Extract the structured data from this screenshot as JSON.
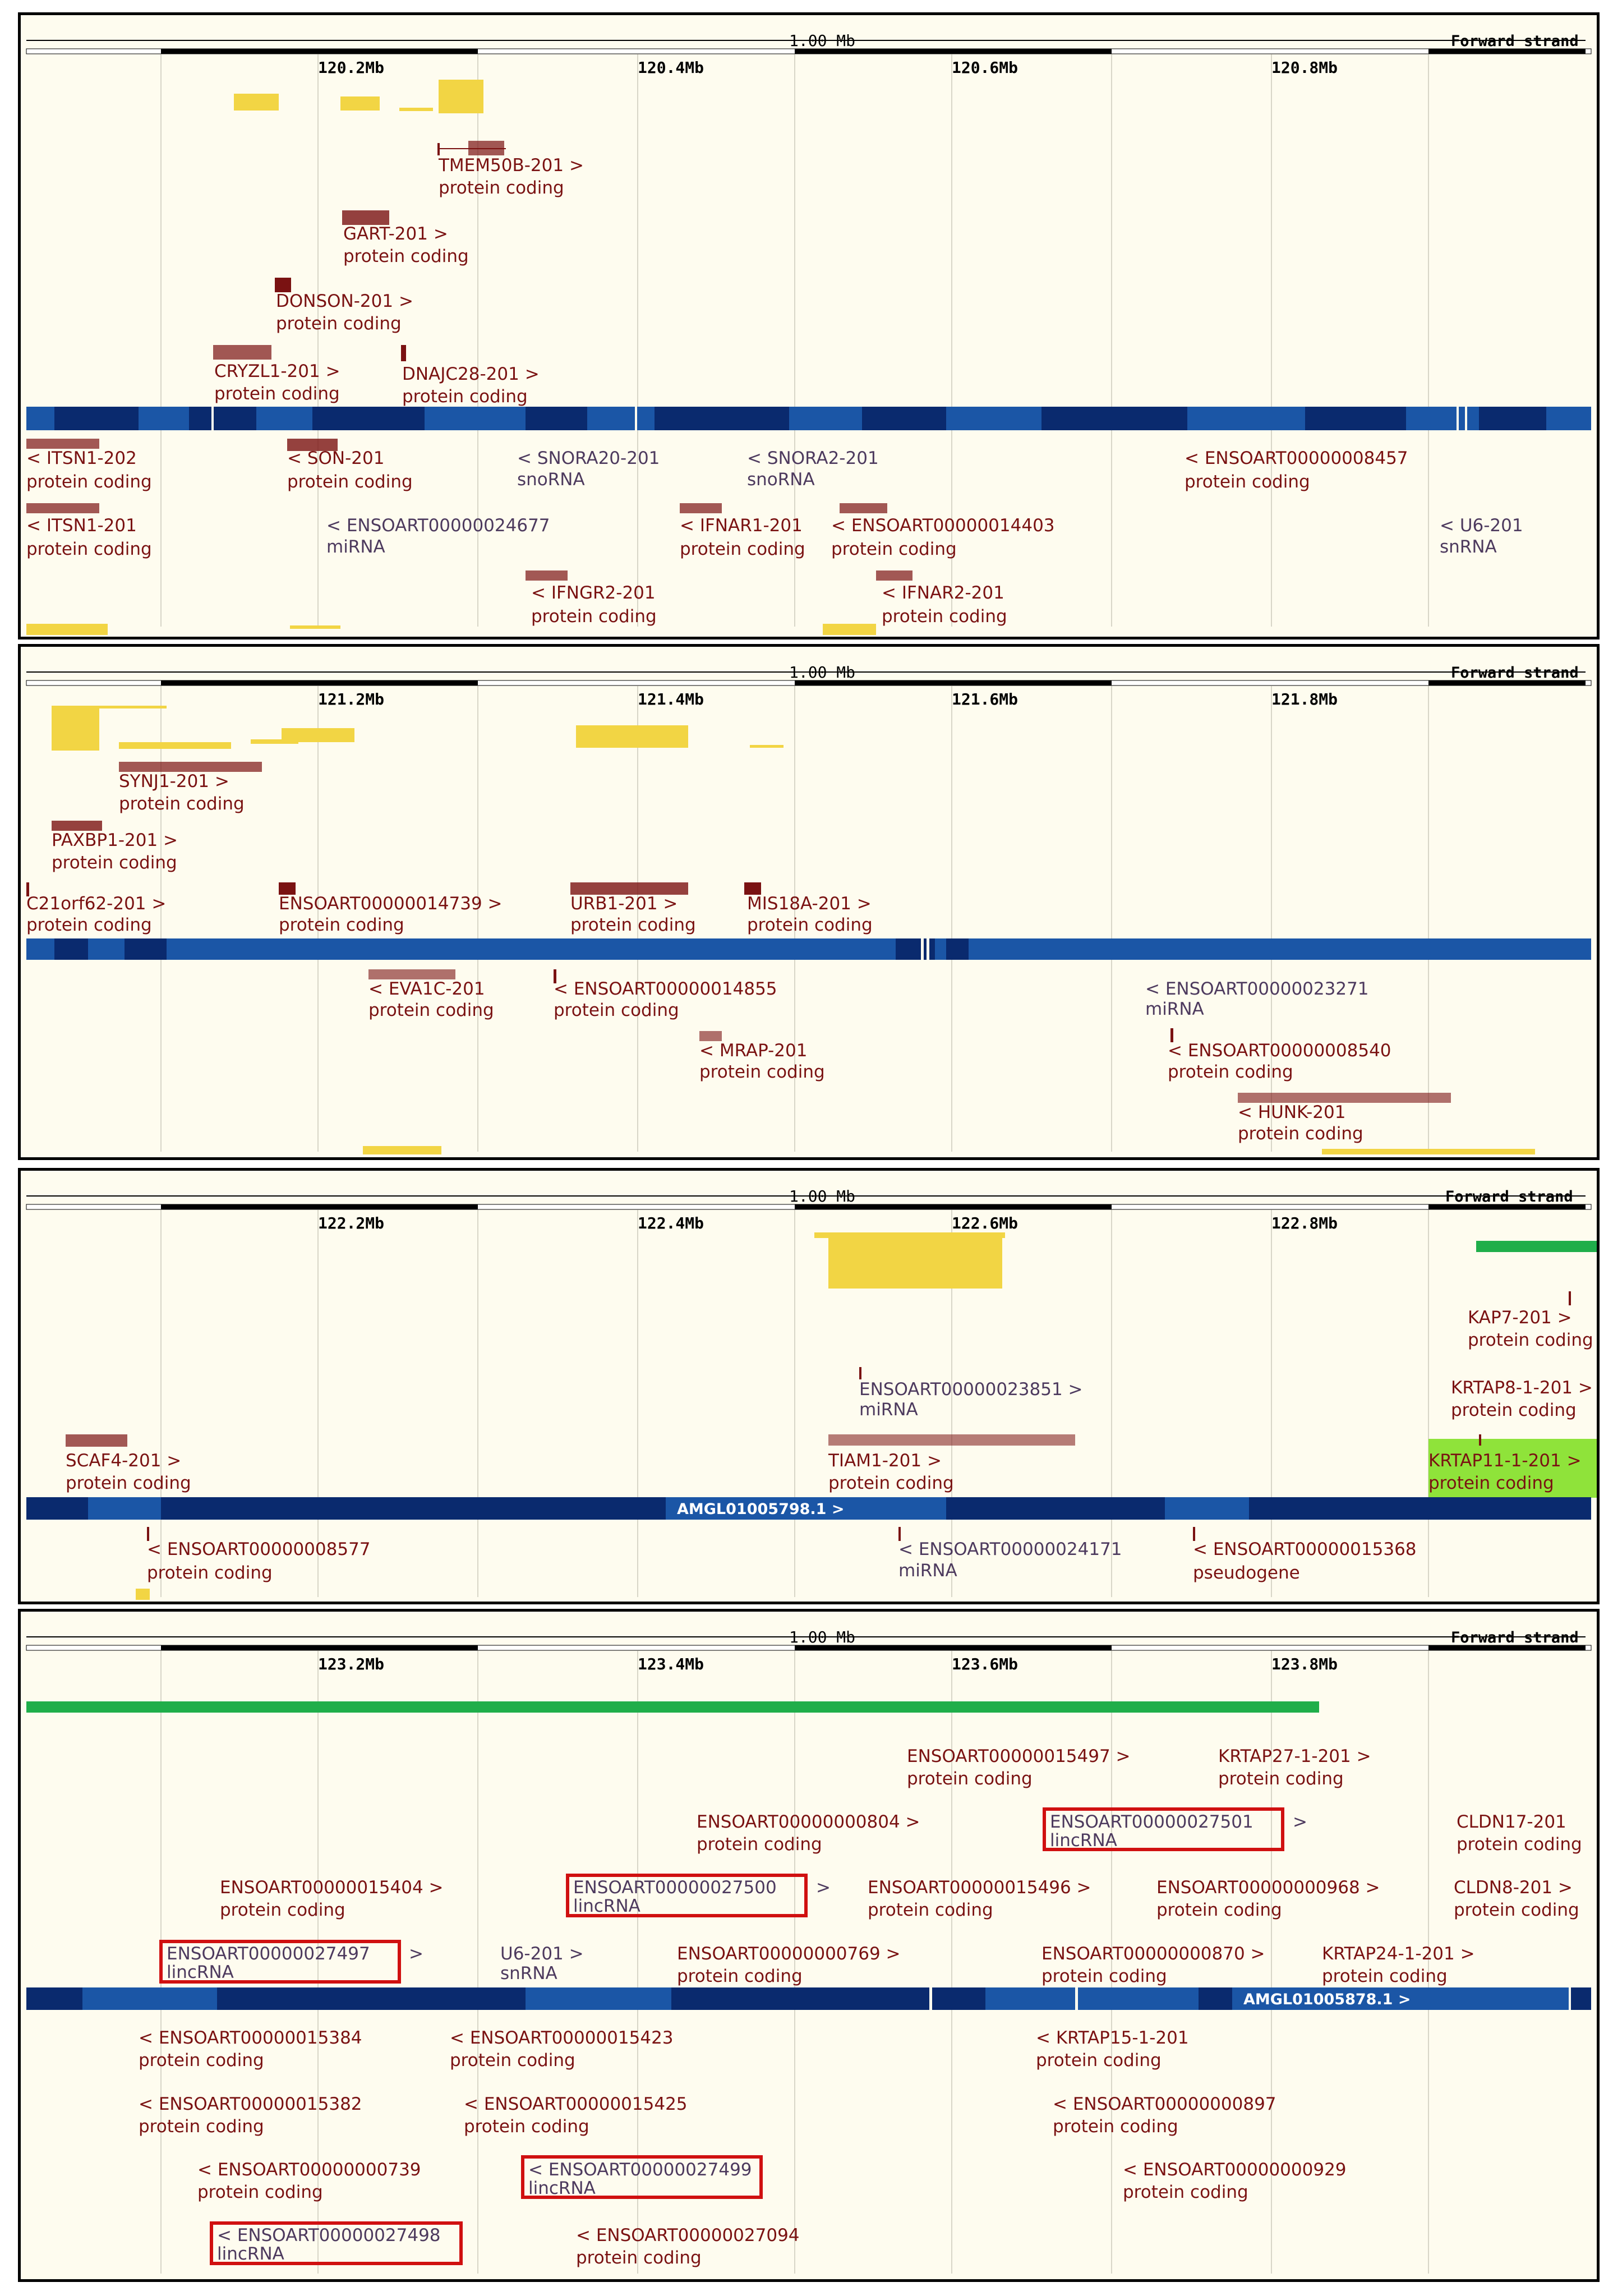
{
  "panels": [
    {
      "scale_label": "1.00 Mb",
      "strand_label": "Forward strand",
      "ticks": [
        "120.2Mb",
        "120.4Mb",
        "120.6Mb",
        "120.8Mb"
      ],
      "genes_above": [
        {
          "name": "TMEM50B-201 >",
          "type": "protein coding"
        },
        {
          "name": "GART-201 >",
          "type": "protein coding"
        },
        {
          "name": "DONSON-201 >",
          "type": "protein coding"
        },
        {
          "name": "CRYZL1-201 >",
          "type": "protein coding"
        },
        {
          "name": "DNAJC28-201 >",
          "type": "protein coding"
        }
      ],
      "genes_below": [
        {
          "name": "< ITSN1-202",
          "type": "protein coding"
        },
        {
          "name": "< SON-201",
          "type": "protein coding"
        },
        {
          "name": "< SNORA20-201",
          "type": "snoRNA"
        },
        {
          "name": "< SNORA2-201",
          "type": "snoRNA"
        },
        {
          "name": "< ENSOART00000008457",
          "type": "protein coding"
        },
        {
          "name": "< ITSN1-201",
          "type": "protein coding"
        },
        {
          "name": "< ENSOART00000024677",
          "type": "miRNA"
        },
        {
          "name": "< IFNAR1-201",
          "type": "protein coding"
        },
        {
          "name": "< ENSOART00000014403",
          "type": "protein coding"
        },
        {
          "name": "< U6-201",
          "type": "snRNA"
        },
        {
          "name": "< IFNGR2-201",
          "type": "protein coding"
        },
        {
          "name": "< IFNAR2-201",
          "type": "protein coding"
        }
      ]
    },
    {
      "scale_label": "1.00 Mb",
      "strand_label": "Forward strand",
      "ticks": [
        "121.2Mb",
        "121.4Mb",
        "121.6Mb",
        "121.8Mb"
      ],
      "genes_above": [
        {
          "name": "SYNJ1-201 >",
          "type": "protein coding"
        },
        {
          "name": "PAXBP1-201 >",
          "type": "protein coding"
        },
        {
          "name": "C21orf62-201 >",
          "type": "protein coding"
        },
        {
          "name": "ENSOART00000014739 >",
          "type": "protein coding"
        },
        {
          "name": "URB1-201 >",
          "type": "protein coding"
        },
        {
          "name": "MIS18A-201 >",
          "type": "protein coding"
        }
      ],
      "genes_below": [
        {
          "name": "< EVA1C-201",
          "type": "protein coding"
        },
        {
          "name": "< ENSOART00000014855",
          "type": "protein coding"
        },
        {
          "name": "< ENSOART00000023271",
          "type": "miRNA"
        },
        {
          "name": "< MRAP-201",
          "type": "protein coding"
        },
        {
          "name": "< ENSOART00000008540",
          "type": "protein coding"
        },
        {
          "name": "< HUNK-201",
          "type": "protein coding"
        }
      ]
    },
    {
      "scale_label": "1.00 Mb",
      "strand_label": "Forward strand",
      "ticks": [
        "122.2Mb",
        "122.4Mb",
        "122.6Mb",
        "122.8Mb"
      ],
      "contig": "AMGL01005798.1 >",
      "genes_above": [
        {
          "name": "KAP7-201 >",
          "type": "protein coding"
        },
        {
          "name": "ENSOART00000023851 >",
          "type": "miRNA"
        },
        {
          "name": "KRTAP8-1-201 >",
          "type": "protein coding"
        },
        {
          "name": "SCAF4-201 >",
          "type": "protein coding"
        },
        {
          "name": "TIAM1-201 >",
          "type": "protein coding"
        },
        {
          "name": "KRTAP11-1-201 >",
          "type": "protein coding"
        }
      ],
      "genes_below": [
        {
          "name": "< ENSOART00000008577",
          "type": "protein coding"
        },
        {
          "name": "< ENSOART00000024171",
          "type": "miRNA"
        },
        {
          "name": "< ENSOART00000015368",
          "type": "pseudogene"
        }
      ]
    },
    {
      "scale_label": "1.00 Mb",
      "strand_label": "Forward strand",
      "ticks": [
        "123.2Mb",
        "123.4Mb",
        "123.6Mb",
        "123.8Mb"
      ],
      "contig": "AMGL01005878.1 >",
      "genes_above": [
        {
          "name": "ENSOART00000015497 >",
          "type": "protein coding"
        },
        {
          "name": "KRTAP27-1-201 >",
          "type": "protein coding"
        },
        {
          "name": "ENSOART00000000804 >",
          "type": "protein coding"
        },
        {
          "name": "ENSOART00000027501",
          "type": "lincRNA",
          "suffix": ">"
        },
        {
          "name": "CLDN17-201",
          "type": "protein coding"
        },
        {
          "name": "ENSOART00000015404 >",
          "type": "protein coding"
        },
        {
          "name": "ENSOART00000027500",
          "type": "lincRNA",
          "suffix": ">"
        },
        {
          "name": "ENSOART00000015496 >",
          "type": "protein coding"
        },
        {
          "name": "ENSOART00000000968 >",
          "type": "protein coding"
        },
        {
          "name": "CLDN8-201 >",
          "type": "protein coding"
        },
        {
          "name": "ENSOART00000027497",
          "type": "lincRNA",
          "suffix": ">"
        },
        {
          "name": "U6-201 >",
          "type": "snRNA"
        },
        {
          "name": "ENSOART00000000769 >",
          "type": "protein coding"
        },
        {
          "name": "ENSOART00000000870 >",
          "type": "protein coding"
        },
        {
          "name": "KRTAP24-1-201 >",
          "type": "protein coding"
        }
      ],
      "genes_below": [
        {
          "name": "< ENSOART00000015384",
          "type": "protein coding"
        },
        {
          "name": "< ENSOART00000015423",
          "type": "protein coding"
        },
        {
          "name": "< KRTAP15-1-201",
          "type": "protein coding"
        },
        {
          "name": "< ENSOART00000015382",
          "type": "protein coding"
        },
        {
          "name": "< ENSOART00000015425",
          "type": "protein coding"
        },
        {
          "name": "< ENSOART00000000897",
          "type": "protein coding"
        },
        {
          "name": "< ENSOART00000000739",
          "type": "protein coding"
        },
        {
          "name": "< ENSOART00000027499",
          "type": "lincRNA"
        },
        {
          "name": "< ENSOART00000000929",
          "type": "protein coding"
        },
        {
          "name": "< ENSOART00000027498",
          "type": "lincRNA"
        },
        {
          "name": "< ENSOART00000027094",
          "type": "protein coding"
        }
      ]
    }
  ],
  "colors": {
    "background": "#fefcef",
    "gene_label": "#7a1212",
    "contig_dark": "#0a2a6e",
    "contig_mid": "#1b56a6",
    "highlight_box": "#d01010",
    "regulatory_yellow": "#f2d544",
    "green_bar": "#1fae4a"
  }
}
